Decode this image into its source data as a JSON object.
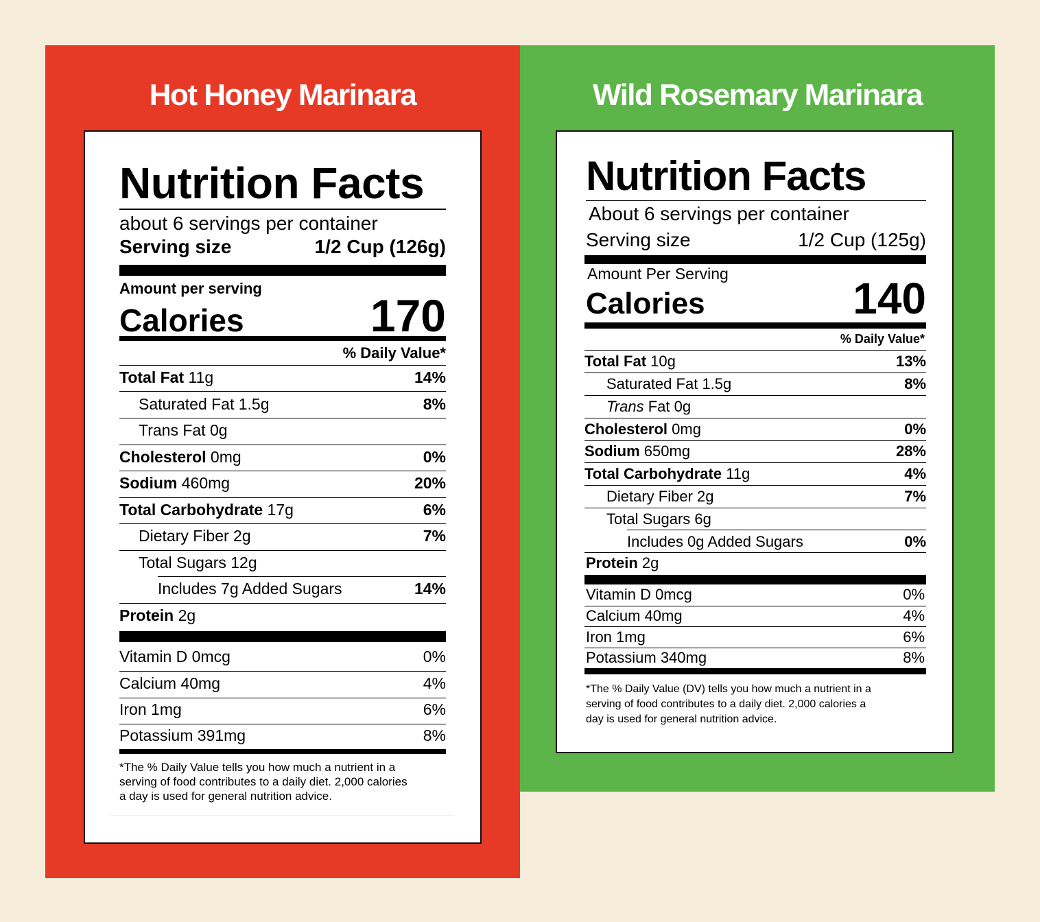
{
  "products": [
    {
      "title": "Hot Honey Marinara",
      "heading": "Nutrition Facts",
      "servings": "about 6 servings per container",
      "serving_size_label": "Serving size",
      "serving_size_value": "1/2 Cup (126g)",
      "amount_label": "Amount per serving",
      "calories_label": "Calories",
      "calories_value": "170",
      "dv_header": "% Daily Value*",
      "nutrients": [
        {
          "name": "Total Fat",
          "amount": "11g",
          "dv": "14%"
        },
        {
          "name": "Saturated Fat",
          "amount": "1.5g",
          "dv": "8%"
        },
        {
          "name": "Trans Fat",
          "amount": "0g",
          "dv": ""
        },
        {
          "name": "Cholesterol",
          "amount": "0mg",
          "dv": "0%"
        },
        {
          "name": "Sodium",
          "amount": "460mg",
          "dv": "20%"
        },
        {
          "name": "Total Carbohydrate",
          "amount": "17g",
          "dv": "6%"
        },
        {
          "name": "Dietary Fiber",
          "amount": "2g",
          "dv": "7%"
        },
        {
          "name": "Total Sugars",
          "amount": "12g",
          "dv": ""
        },
        {
          "name": "Includes 7g Added Sugars",
          "amount": "",
          "dv": "14%"
        },
        {
          "name": "Protein",
          "amount": "2g",
          "dv": ""
        }
      ],
      "vitamins": [
        {
          "name": "Vitamin D 0mcg",
          "dv": "0%"
        },
        {
          "name": "Calcium 40mg",
          "dv": "4%"
        },
        {
          "name": "Iron 1mg",
          "dv": "6%"
        },
        {
          "name": "Potassium 391mg",
          "dv": "8%"
        }
      ],
      "footnote_lines": [
        "*The % Daily Value tells you how much a nutrient in a",
        "serving of food contributes to a daily diet. 2,000 calories",
        "a day is used for general nutrition advice."
      ],
      "brand_color": "#e63a27"
    },
    {
      "title": "Wild Rosemary Marinara",
      "heading": "Nutrition Facts",
      "servings": "About 6 servings per container",
      "serving_size_label": "Serving size",
      "serving_size_value": "1/2 Cup (125g)",
      "amount_label": "Amount Per Serving",
      "calories_label": "Calories",
      "calories_value": "140",
      "dv_header": "% Daily Value*",
      "nutrients": [
        {
          "name": "Total Fat",
          "amount": "10g",
          "dv": "13%"
        },
        {
          "name": "Saturated Fat",
          "amount": "1.5g",
          "dv": "8%"
        },
        {
          "name": "Trans",
          "amount": "Fat 0g",
          "dv": ""
        },
        {
          "name": "Cholesterol",
          "amount": "0mg",
          "dv": "0%"
        },
        {
          "name": "Sodium",
          "amount": "650mg",
          "dv": "28%"
        },
        {
          "name": "Total Carbohydrate",
          "amount": "11g",
          "dv": "4%"
        },
        {
          "name": "Dietary Fiber",
          "amount": "2g",
          "dv": "7%"
        },
        {
          "name": "Total Sugars",
          "amount": "6g",
          "dv": ""
        },
        {
          "name": "Includes 0g Added Sugars",
          "amount": "",
          "dv": "0%"
        },
        {
          "name": "Protein",
          "amount": "2g",
          "dv": ""
        }
      ],
      "vitamins": [
        {
          "name": "Vitamin D 0mcg",
          "dv": "0%"
        },
        {
          "name": "Calcium 40mg",
          "dv": "4%"
        },
        {
          "name": "Iron 1mg",
          "dv": "6%"
        },
        {
          "name": "Potassium 340mg",
          "dv": "8%"
        }
      ],
      "footnote_lines": [
        "*The % Daily Value (DV) tells you how much a nutrient in a",
        "serving of food contributes to a daily diet. 2,000 calories a",
        "day is used for general nutrition advice."
      ],
      "brand_color": "#5db54a"
    }
  ]
}
